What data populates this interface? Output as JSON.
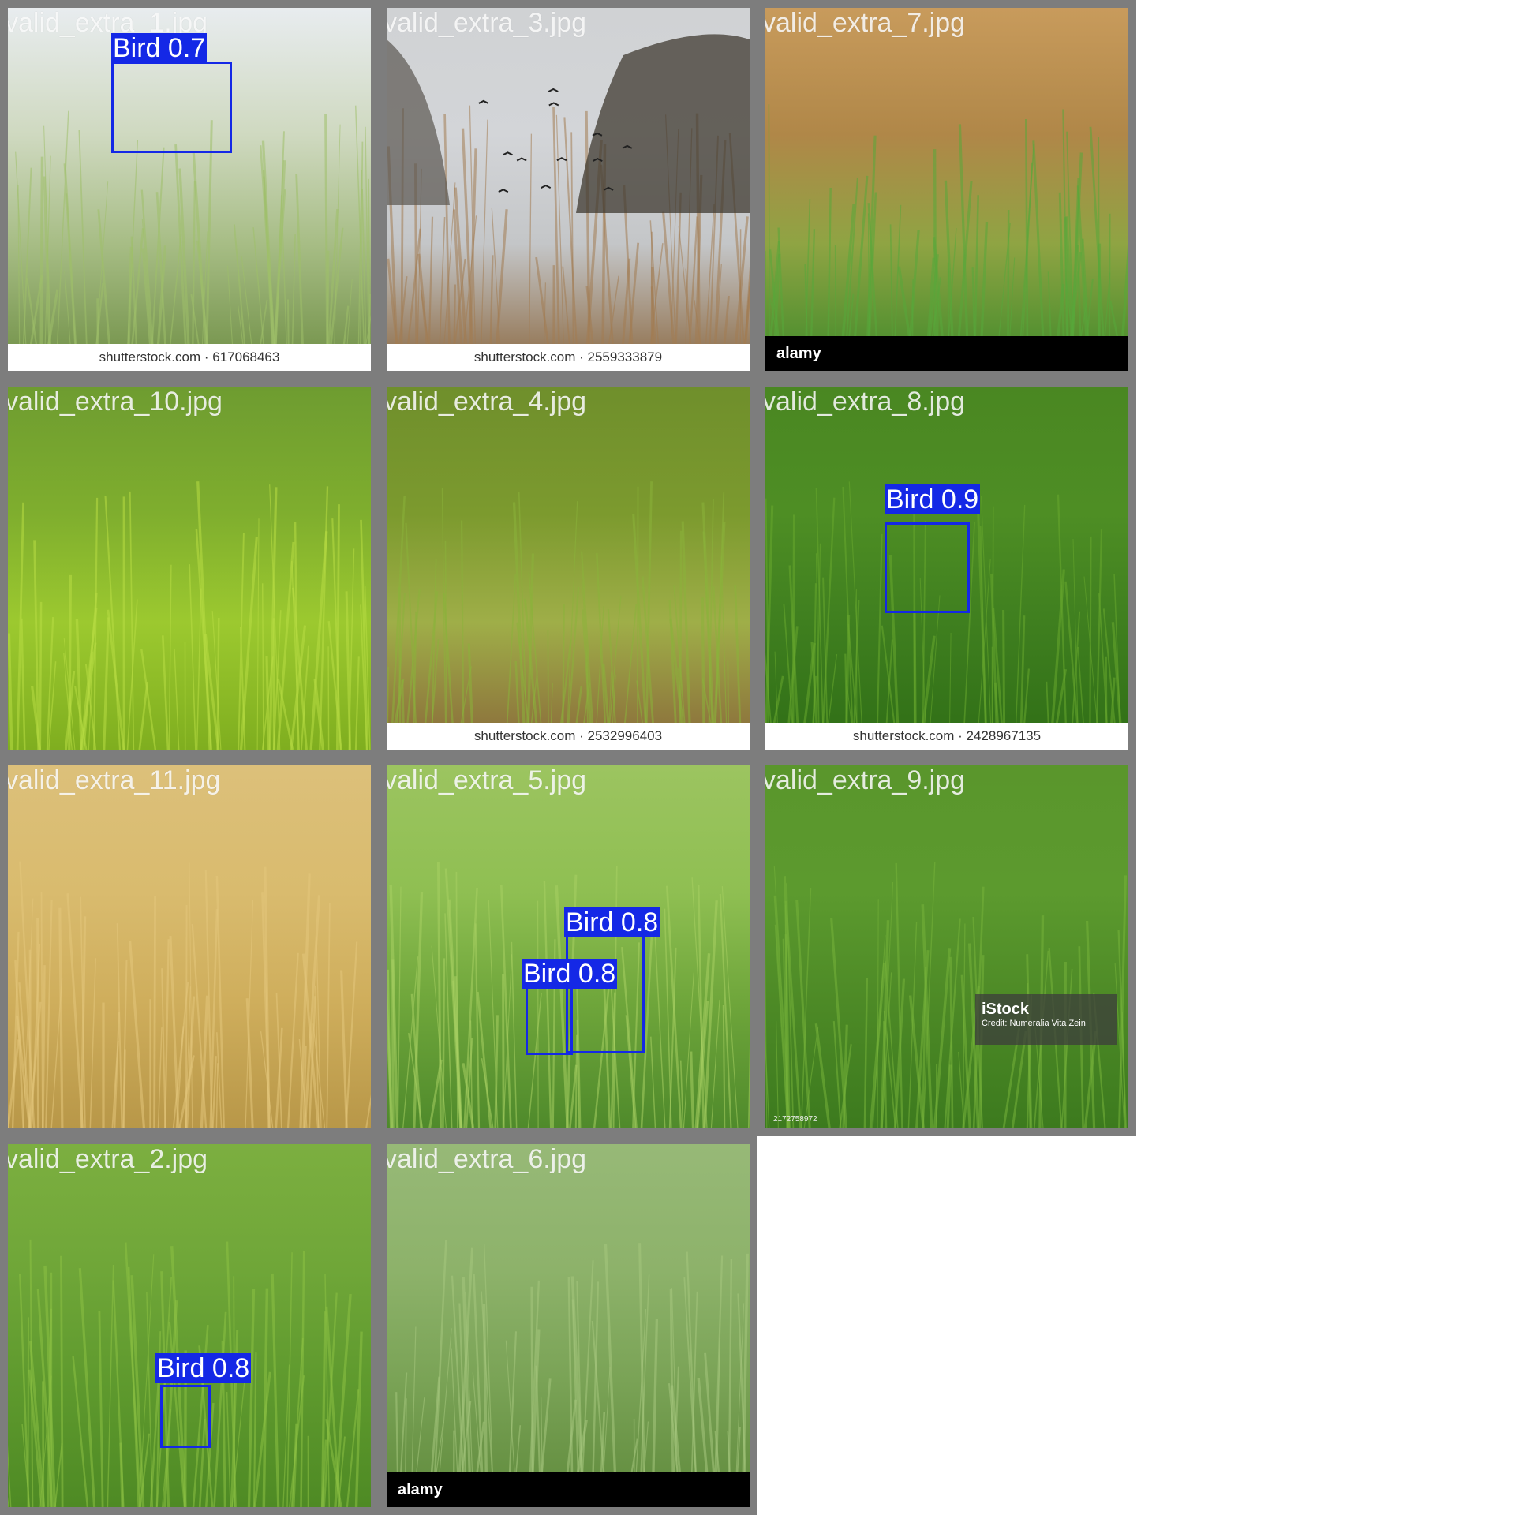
{
  "tiles": [
    {
      "filename": "valid_extra_1.jpg",
      "scene": "millet",
      "watermark": {
        "type": "shutterstock",
        "text": "shutterstock.com · 617068463"
      },
      "detections": [
        {
          "label": "Bird",
          "confidence": "0.7"
        }
      ]
    },
    {
      "filename": "valid_extra_3.jpg",
      "scene": "sky-field",
      "watermark": {
        "type": "shutterstock",
        "text": "shutterstock.com · 2559333879"
      },
      "detections": []
    },
    {
      "filename": "valid_extra_7.jpg",
      "scene": "hill-grass",
      "watermark": {
        "type": "alamy",
        "text": "alamy"
      },
      "detections": []
    },
    {
      "filename": "valid_extra_10.jpg",
      "scene": "bright-field",
      "watermark": null,
      "detections": []
    },
    {
      "filename": "valid_extra_4.jpg",
      "scene": "path-grass",
      "watermark": {
        "type": "shutterstock",
        "text": "shutterstock.com · 2532996403"
      },
      "detections": []
    },
    {
      "filename": "valid_extra_8.jpg",
      "scene": "green-tall",
      "watermark": {
        "type": "shutterstock",
        "text": "shutterstock.com · 2428967135"
      },
      "detections": [
        {
          "label": "Bird",
          "confidence": "0.9"
        }
      ]
    },
    {
      "filename": "valid_extra_11.jpg",
      "scene": "golden-field",
      "watermark": null,
      "detections": []
    },
    {
      "filename": "valid_extra_5.jpg",
      "scene": "rice-closeup",
      "watermark": null,
      "detections": [
        {
          "label": "Bird",
          "confidence": "0.8"
        },
        {
          "label": "Bird",
          "confidence": "0.8"
        }
      ]
    },
    {
      "filename": "valid_extra_9.jpg",
      "scene": "dense-green",
      "watermark": {
        "type": "istock",
        "text": "iStock",
        "credit": "Credit: Numeralia Vita Zein",
        "id": "2172758972"
      },
      "detections": []
    },
    {
      "filename": "valid_extra_2.jpg",
      "scene": "lush-green",
      "watermark": null,
      "detections": [
        {
          "label": "Bird",
          "confidence": "0.8"
        }
      ]
    },
    {
      "filename": "valid_extra_6.jpg",
      "scene": "wild-grass",
      "watermark": {
        "type": "alamy",
        "text": "alamy"
      },
      "detections": []
    }
  ],
  "colors": {
    "box": "#1428e6",
    "label_text": "#ffffff",
    "tile_border": "#7d7d7d",
    "background": "#ffffff"
  }
}
